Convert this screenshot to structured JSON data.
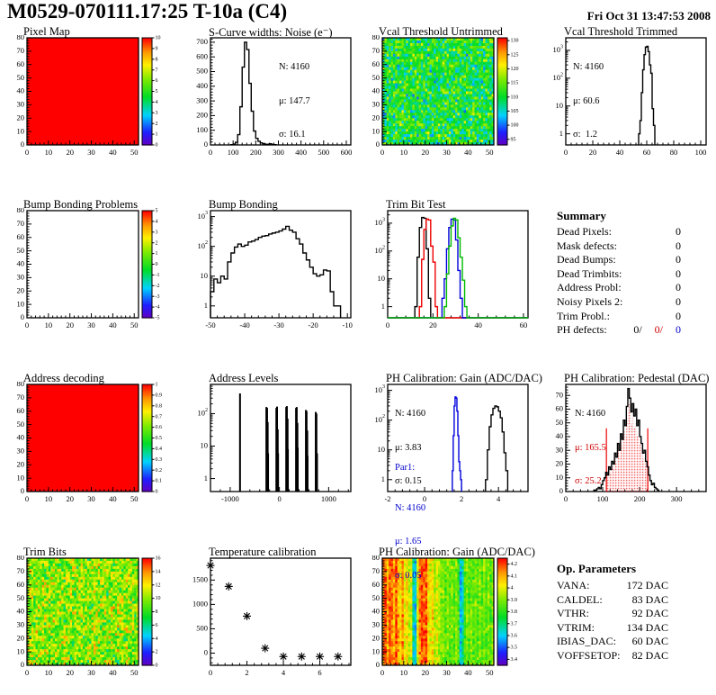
{
  "header": {
    "title": "M0529-070111.17:25 T-10a (C4)",
    "timestamp": "Fri Oct 31 13:47:53 2008"
  },
  "accent_colors": {
    "plot_black": "#000000",
    "plot_red": "#ee0000",
    "plot_blue": "#0000dd",
    "plot_green": "#00bb00",
    "stat_red": "#cc0000",
    "stat_blue": "#0000cc",
    "map_max_red": "#ff0000"
  },
  "summary": {
    "title": "Summary",
    "rows": [
      {
        "label": "Dead Pixels:",
        "value": "0"
      },
      {
        "label": "Mask defects:",
        "value": "0"
      },
      {
        "label": "Dead Bumps:",
        "value": "0"
      },
      {
        "label": "Dead Trimbits:",
        "value": "0"
      },
      {
        "label": "Address Probl:",
        "value": "0"
      },
      {
        "label": "Noisy Pixels 2:",
        "value": "0"
      },
      {
        "label": "Trim Probl.:",
        "value": "0"
      }
    ],
    "ph_defects": {
      "label": "PH defects:",
      "values": [
        "0/",
        "0/",
        "0"
      ]
    }
  },
  "op_parameters": {
    "title": "Op. Parameters",
    "rows": [
      {
        "label": "VANA:",
        "value": "172 DAC"
      },
      {
        "label": "CALDEL:",
        "value": "83 DAC"
      },
      {
        "label": "VTHR:",
        "value": "92 DAC"
      },
      {
        "label": "VTRIM:",
        "value": "134 DAC"
      },
      {
        "label": "IBIAS_DAC:",
        "value": "60 DAC"
      },
      {
        "label": "VOFFSETOP:",
        "value": "82 DAC"
      }
    ]
  },
  "chart_data": [
    {
      "id": "pixel_map",
      "type": "map2d",
      "mode": "solid",
      "title": "Pixel Map",
      "xlim": [
        0,
        52
      ],
      "ylim": [
        0,
        80
      ],
      "xticks": [
        0,
        10,
        20,
        30,
        40,
        50
      ],
      "yticks": [
        0,
        10,
        20,
        30,
        40,
        50,
        60,
        70,
        80
      ],
      "zlim": [
        0,
        10
      ],
      "value": 10,
      "colorbar_ticks": [
        0,
        1,
        2,
        3,
        4,
        5,
        6,
        7,
        8,
        9,
        10
      ]
    },
    {
      "id": "scurve_noise",
      "type": "hist",
      "title": "S-Curve widths: Noise (e⁻)",
      "xlim": [
        0,
        620
      ],
      "xticks": [
        0,
        100,
        200,
        300,
        400,
        500,
        600
      ],
      "yscale": "lin",
      "ylim": [
        0,
        730
      ],
      "yticks": [
        0,
        100,
        200,
        300,
        400,
        500,
        600,
        700
      ],
      "series": [
        {
          "color": "#000000",
          "start": 90,
          "bin_width": 10,
          "values": [
            2,
            6,
            18,
            70,
            260,
            530,
            700,
            650,
            420,
            230,
            95,
            45,
            25,
            14,
            8,
            5,
            4,
            8,
            3,
            2
          ]
        }
      ],
      "stats": [
        "N: 4160",
        "μ: 147.7",
        "σ: 16.1"
      ]
    },
    {
      "id": "vcal_untrimmed",
      "type": "map2d",
      "mode": "noise",
      "title": "Vcal Threshold Untrimmed",
      "xlim": [
        0,
        52
      ],
      "ylim": [
        0,
        80
      ],
      "xticks": [
        0,
        10,
        20,
        30,
        40,
        50
      ],
      "yticks": [
        0,
        10,
        20,
        30,
        40,
        50,
        60,
        70,
        80
      ],
      "zlim": [
        93,
        131
      ],
      "mean": 111,
      "spread": 8,
      "seed": 7,
      "colorbar_ticks": [
        95,
        100,
        105,
        110,
        115,
        120,
        125,
        130
      ]
    },
    {
      "id": "vcal_trimmed",
      "type": "hist",
      "title": "Vcal Threshold Trimmed",
      "xlim": [
        0,
        104
      ],
      "xticks": [
        0,
        20,
        40,
        60,
        80,
        100
      ],
      "yscale": "log",
      "ylog_max": 3.45,
      "series": [
        {
          "color": "#000000",
          "start": 54,
          "bin_width": 1,
          "values": [
            1,
            3,
            30,
            200,
            700,
            1300,
            1400,
            900,
            300,
            150,
            8,
            2
          ]
        }
      ],
      "stats": [
        "N: 4160",
        "μ: 60.6",
        "σ:  1.2"
      ]
    },
    {
      "id": "bump_problems",
      "type": "map2d",
      "mode": "empty",
      "title": "Bump Bonding Problems",
      "xlim": [
        0,
        52
      ],
      "ylim": [
        0,
        80
      ],
      "xticks": [
        0,
        10,
        20,
        30,
        40,
        50
      ],
      "yticks": [
        0,
        10,
        20,
        30,
        40,
        50,
        60,
        70,
        80
      ],
      "zlim": [
        -5,
        5
      ],
      "colorbar_ticks": [
        -5,
        -4,
        -3,
        -2,
        -1,
        0,
        1,
        2,
        3,
        4,
        5
      ]
    },
    {
      "id": "bump_bonding",
      "type": "hist",
      "title": "Bump Bonding",
      "xlim": [
        -50,
        -9
      ],
      "xticks": [
        -50,
        -40,
        -30,
        -20,
        -10
      ],
      "yscale": "log",
      "ylog_max": 3.2,
      "series": [
        {
          "color": "#000000",
          "start": -50,
          "bin_width": 1,
          "values": [
            3,
            8,
            6,
            10,
            8,
            30,
            60,
            95,
            120,
            100,
            110,
            140,
            150,
            170,
            200,
            220,
            230,
            260,
            280,
            300,
            330,
            380,
            470,
            350,
            300,
            180,
            120,
            60,
            35,
            20,
            12,
            10,
            11,
            16,
            15,
            3,
            1,
            1
          ]
        }
      ]
    },
    {
      "id": "trim_bit_test",
      "type": "hist",
      "title": "Trim Bit Test",
      "xlim": [
        0,
        62
      ],
      "xticks": [
        0,
        20,
        40,
        60
      ],
      "yscale": "log",
      "ylog_max": 3.45,
      "series": [
        {
          "color": "#000000",
          "start": 12,
          "bin_width": 1,
          "values": [
            1,
            60,
            700,
            1600,
            1500,
            120,
            2
          ]
        },
        {
          "color": "#ee0000",
          "start": 14,
          "bin_width": 1,
          "baseline": true,
          "values": [
            1,
            50,
            600,
            1400,
            1300,
            150,
            40,
            1
          ]
        },
        {
          "color": "#0000dd",
          "start": 24,
          "bin_width": 1,
          "baseline": true,
          "values": [
            2,
            10,
            120,
            700,
            1400,
            1300,
            250,
            20,
            2
          ]
        },
        {
          "color": "#00bb00",
          "start": 25,
          "bin_width": 1,
          "baseline": true,
          "values": [
            1,
            15,
            150,
            800,
            1500,
            1300,
            300,
            60,
            9,
            1
          ]
        }
      ]
    },
    {
      "id": "address_decoding",
      "type": "map2d",
      "mode": "solid",
      "title": "Address decoding",
      "xlim": [
        0,
        52
      ],
      "ylim": [
        0,
        80
      ],
      "xticks": [
        0,
        10,
        20,
        30,
        40,
        50
      ],
      "yticks": [
        0,
        10,
        20,
        30,
        40,
        50,
        60,
        70,
        80
      ],
      "zlim": [
        0,
        1
      ],
      "value": 1,
      "colorbar_ticks": [
        0,
        0.1,
        0.2,
        0.3,
        0.4,
        0.5,
        0.6,
        0.7,
        0.8,
        0.9,
        1
      ]
    },
    {
      "id": "address_levels",
      "type": "spikes",
      "title": "Address Levels",
      "xlim": [
        -1400,
        1450
      ],
      "xticks": [
        -1000,
        0,
        1000
      ],
      "yscale": "log",
      "ylog_max": 2.9,
      "spikes": [
        [
          -800,
          420
        ],
        [
          -265,
          160
        ],
        [
          -250,
          150
        ],
        [
          -238,
          55
        ],
        [
          -230,
          6
        ],
        [
          -62,
          150
        ],
        [
          -48,
          165
        ],
        [
          -34,
          33
        ],
        [
          -27,
          6
        ],
        [
          138,
          160
        ],
        [
          152,
          170
        ],
        [
          166,
          70
        ],
        [
          172,
          8
        ],
        [
          338,
          150
        ],
        [
          352,
          160
        ],
        [
          366,
          52
        ],
        [
          372,
          9
        ],
        [
          538,
          130
        ],
        [
          552,
          120
        ],
        [
          566,
          30
        ],
        [
          572,
          5
        ],
        [
          738,
          112
        ],
        [
          752,
          100
        ],
        [
          764,
          6
        ]
      ]
    },
    {
      "id": "ph_gain_hist",
      "type": "hist",
      "title": "PH Calibration: Gain (ADC/DAC)",
      "xlim": [
        -2,
        5.6
      ],
      "xticks": [
        -2,
        0,
        2,
        4
      ],
      "yscale": "log",
      "ylog_max": 3.2,
      "series": [
        {
          "color": "#000000",
          "start": 3.3,
          "bin_width": 0.1,
          "values": [
            1,
            10,
            60,
            150,
            250,
            300,
            280,
            200,
            120,
            40,
            8,
            2
          ]
        },
        {
          "color": "#0000dd",
          "start": 1.5,
          "bin_width": 0.05,
          "values": [
            2,
            30,
            300,
            600,
            550,
            200,
            30,
            4,
            2,
            1
          ]
        }
      ],
      "stats": [
        "N: 4160",
        "μ: 3.83",
        "σ: 0.15"
      ],
      "stats_par1": [
        "Par1:",
        "N: 4160",
        "μ: 1.65",
        "σ: 0.05"
      ]
    },
    {
      "id": "ph_pedestal",
      "type": "hist",
      "title": "PH Calibration: Pedestal (DAC)",
      "xlim": [
        0,
        380
      ],
      "xticks": [
        0,
        100,
        200,
        300
      ],
      "yscale": "lin",
      "ylim": [
        0,
        78
      ],
      "yticks": [
        0,
        10,
        20,
        30,
        40,
        50,
        60,
        70
      ],
      "series": [
        {
          "color": "#000000",
          "start": 76,
          "bin_width": 4,
          "values": [
            1,
            1,
            2,
            3,
            2,
            5,
            8,
            10,
            14,
            12,
            18,
            16,
            22,
            20,
            28,
            25,
            35,
            30,
            42,
            38,
            52,
            48,
            62,
            75,
            68,
            58,
            64,
            55,
            60,
            48,
            52,
            40,
            35,
            28,
            30,
            22,
            18,
            12,
            8,
            5,
            6,
            3,
            2,
            1
          ]
        }
      ],
      "fill": {
        "range": [
          108,
          224
        ],
        "scale": 0.85,
        "color": "#ee0000"
      },
      "vlines": [
        {
          "x": 110,
          "h": 46
        },
        {
          "x": 222,
          "h": 46
        }
      ],
      "stats": [
        "N: 4160",
        "μ: 165.5",
        "σ: 25.2"
      ]
    },
    {
      "id": "trim_bits_map",
      "type": "map2d",
      "mode": "noise",
      "title": "Trim Bits",
      "xlim": [
        0,
        52
      ],
      "ylim": [
        0,
        80
      ],
      "xticks": [
        0,
        10,
        20,
        30,
        40,
        50
      ],
      "yticks": [
        0,
        10,
        20,
        30,
        40,
        50,
        60,
        70,
        80
      ],
      "zlim": [
        0,
        16
      ],
      "mean": 10,
      "spread": 3.2,
      "seed": 21,
      "colorbar_ticks": [
        0,
        2,
        4,
        6,
        8,
        10,
        12,
        14,
        16
      ]
    },
    {
      "id": "temp_calib",
      "type": "scatter",
      "title": "Temperature calibration",
      "xlim": [
        0,
        7.7
      ],
      "xticks": [
        0,
        2,
        4,
        6
      ],
      "yscale": "lin",
      "ylim": [
        -250,
        1950
      ],
      "yticks": [
        0,
        500,
        1000,
        1500
      ],
      "points": [
        [
          0,
          1800
        ],
        [
          1,
          1370
        ],
        [
          2,
          760
        ],
        [
          3,
          100
        ],
        [
          4,
          -70
        ],
        [
          5,
          -70
        ],
        [
          6,
          -70
        ],
        [
          7,
          -70
        ]
      ]
    },
    {
      "id": "ph_gain_map",
      "type": "map2d",
      "mode": "columns",
      "title": "PH Calibration: Gain (ADC/DAC)",
      "xlim": [
        0,
        52
      ],
      "ylim": [
        0,
        80
      ],
      "xticks": [
        0,
        10,
        20,
        30,
        40,
        50
      ],
      "yticks": [
        0,
        10,
        20,
        30,
        40,
        50,
        60,
        70,
        80
      ],
      "zlim": [
        3.35,
        4.25
      ],
      "noise": 0.07,
      "seed": 33,
      "col_values": [
        4.15,
        4.2,
        4.1,
        4.2,
        4.15,
        4.1,
        4.2,
        4.1,
        4.05,
        4.15,
        4.0,
        4.05,
        3.95,
        4.0,
        3.65,
        3.6,
        4.0,
        4.15,
        4.2,
        4.15,
        4.2,
        4.05,
        4.0,
        4.05,
        3.95,
        4.0,
        3.95,
        3.9,
        3.9,
        3.85,
        3.9,
        3.85,
        3.9,
        3.85,
        3.9,
        3.85,
        3.6,
        3.65,
        3.85,
        3.9,
        3.85,
        3.9,
        3.85,
        3.9,
        3.85,
        3.9,
        3.85,
        3.9,
        3.85,
        3.9,
        3.85,
        3.9
      ],
      "colorbar_ticks": [
        3.4,
        3.5,
        3.6,
        3.7,
        3.8,
        3.9,
        4,
        4.1,
        4.2
      ]
    }
  ]
}
